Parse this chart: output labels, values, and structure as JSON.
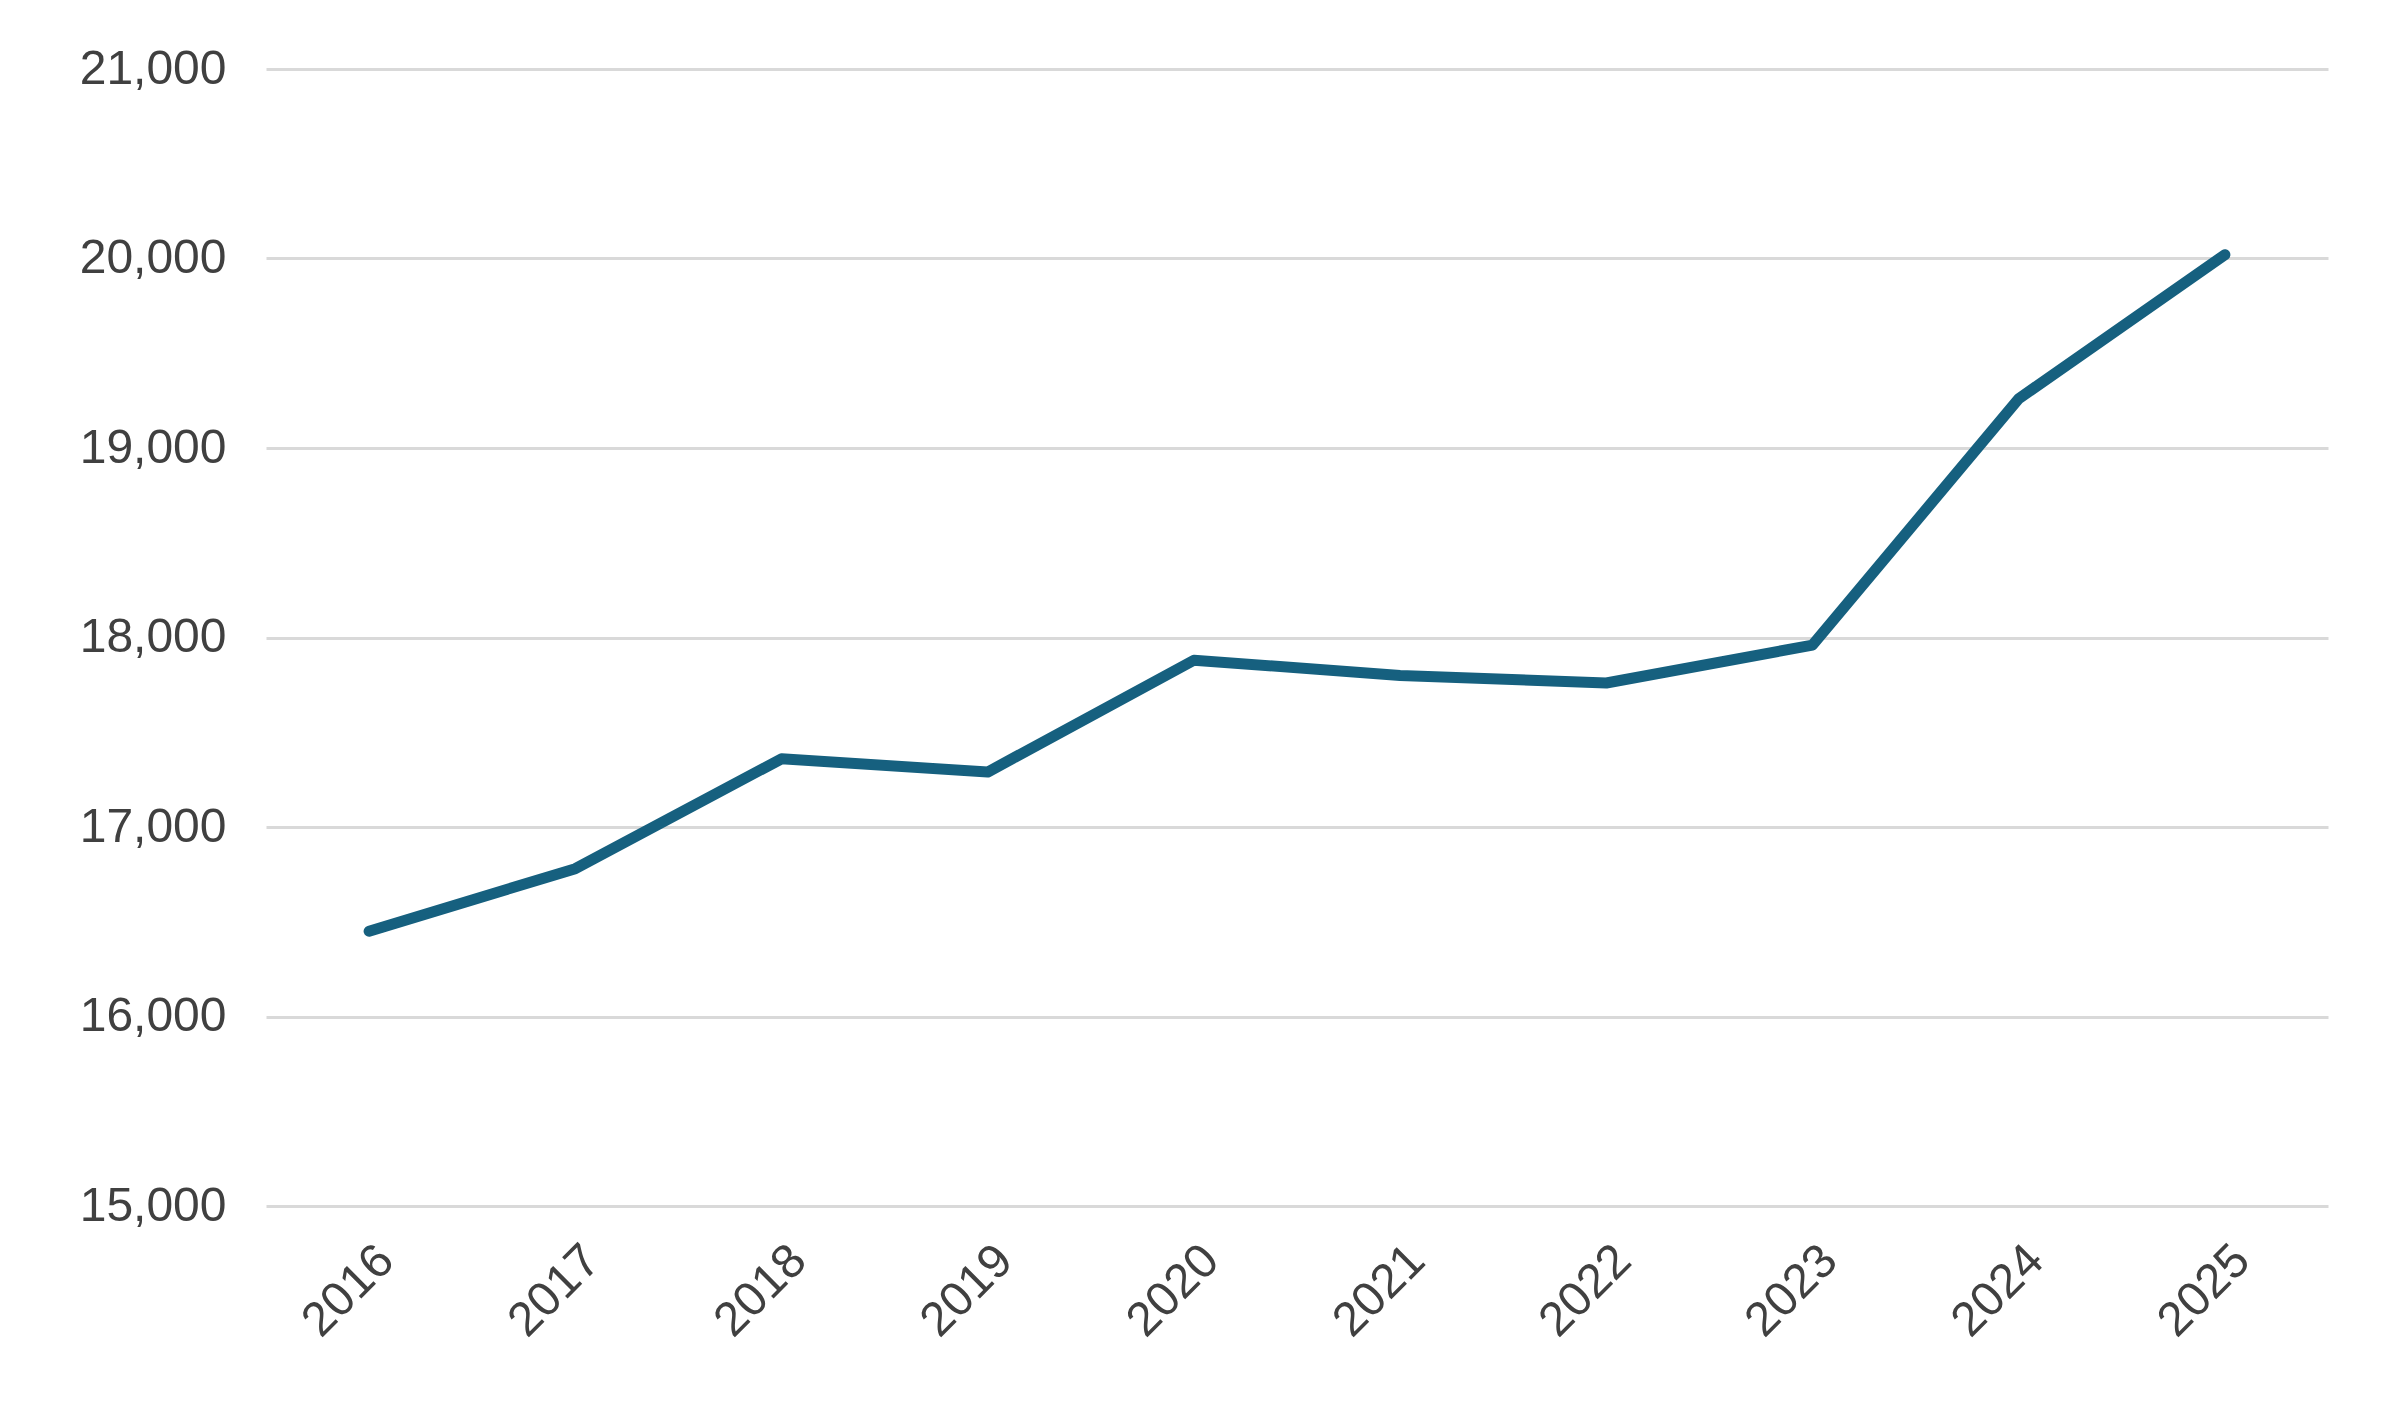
{
  "chart_data": {
    "type": "line",
    "categories": [
      "2016",
      "2017",
      "2018",
      "2019",
      "2020",
      "2021",
      "2022",
      "2023",
      "2024",
      "2025"
    ],
    "series": [
      {
        "color": "#16607f",
        "values": [
          16450,
          16780,
          17360,
          17290,
          17880,
          17800,
          17760,
          17960,
          19260,
          20020
        ]
      }
    ],
    "ylim": [
      15000,
      21000
    ],
    "yticks": [
      {
        "value": 15000,
        "label": "15,000"
      },
      {
        "value": 16000,
        "label": "16,000"
      },
      {
        "value": 17000,
        "label": "17,000"
      },
      {
        "value": 18000,
        "label": "18,000"
      },
      {
        "value": 19000,
        "label": "19,000"
      },
      {
        "value": 20000,
        "label": "20,000"
      },
      {
        "value": 21000,
        "label": "21,000"
      }
    ],
    "grid": "y",
    "marker": "none",
    "line_style": "solid"
  }
}
